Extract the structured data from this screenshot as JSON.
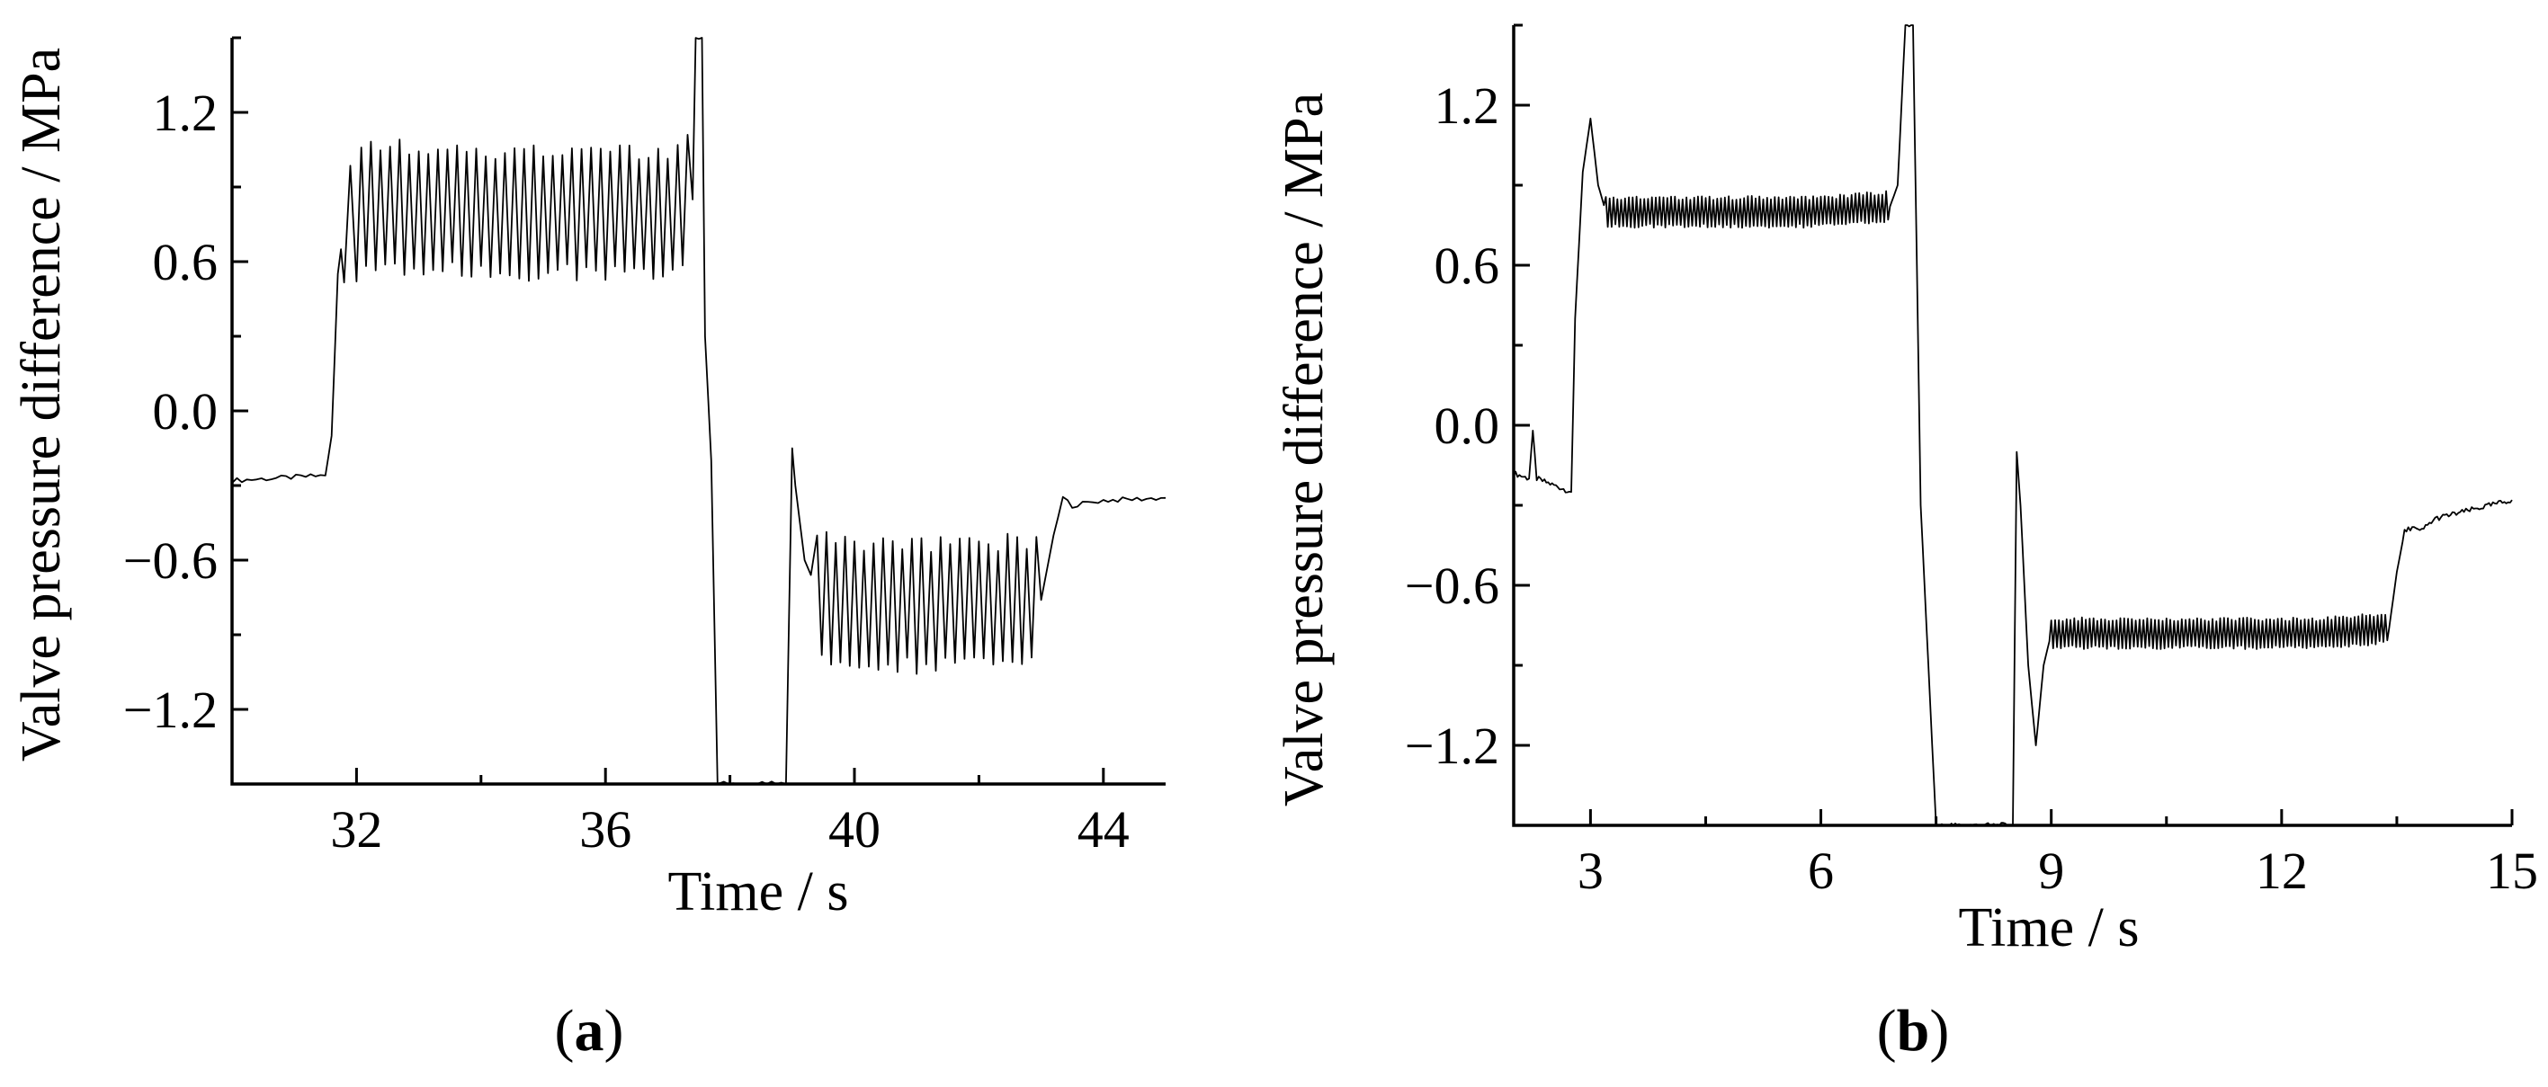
{
  "chart_data": [
    {
      "type": "line",
      "panel_label": "a",
      "xlabel": "Time / s",
      "ylabel": "Valve pressure difference / MPa",
      "xlim": [
        30.0,
        45.0
      ],
      "ylim": [
        -1.5,
        1.5
      ],
      "xticks": [
        32,
        36,
        40,
        44
      ],
      "xtick_labels": [
        "32",
        "36",
        "40",
        "44"
      ],
      "yticks": [
        -1.2,
        -0.6,
        0.0,
        0.6,
        1.2
      ],
      "ytick_labels": [
        "−1.2",
        "−0.6",
        "0.0",
        "0.6",
        "1.2"
      ],
      "grid": false,
      "series": [
        {
          "x": [
            30.0,
            31.5,
            31.6,
            31.7,
            31.8,
            32.0,
            33.0,
            34.0,
            35.0,
            36.0,
            37.0,
            37.4,
            37.45,
            37.55,
            37.6,
            37.7,
            37.8,
            37.9,
            38.9,
            39.0,
            39.05,
            39.2,
            39.4,
            40.0,
            41.0,
            42.0,
            43.0,
            43.2,
            43.35,
            43.5,
            44.0,
            45.0
          ],
          "y": [
            -0.28,
            -0.26,
            -0.1,
            0.55,
            0.75,
            0.8,
            0.82,
            0.8,
            0.8,
            0.8,
            0.8,
            0.85,
            1.5,
            1.5,
            0.3,
            -0.2,
            -1.5,
            -1.5,
            -1.5,
            -0.15,
            -0.3,
            -0.6,
            -0.72,
            -0.78,
            -0.78,
            -0.78,
            -0.76,
            -0.5,
            -0.35,
            -0.38,
            -0.36,
            -0.35
          ]
        }
      ]
    },
    {
      "type": "line",
      "panel_label": "b",
      "xlabel": "Time / s",
      "ylabel": "Valve pressure difference / MPa",
      "xlim": [
        2.0,
        15.0
      ],
      "ylim": [
        -1.5,
        1.5
      ],
      "xticks": [
        3,
        6,
        9,
        12,
        15
      ],
      "xtick_labels": [
        "3",
        "6",
        "9",
        "12",
        "15"
      ],
      "yticks": [
        -1.2,
        -0.6,
        0.0,
        0.6,
        1.2
      ],
      "ytick_labels": [
        "−1.2",
        "−0.6",
        "0.0",
        "0.6",
        "1.2"
      ],
      "grid": false,
      "series": [
        {
          "x": [
            2.0,
            2.2,
            2.25,
            2.3,
            2.75,
            2.8,
            2.9,
            3.0,
            3.1,
            3.2,
            3.5,
            4.0,
            5.0,
            6.0,
            6.9,
            7.0,
            7.1,
            7.2,
            7.3,
            7.5,
            8.5,
            8.55,
            8.6,
            8.7,
            8.8,
            8.9,
            9.0,
            9.5,
            10.5,
            11.5,
            12.5,
            13.4,
            13.5,
            13.6,
            13.7,
            13.8,
            14.0,
            15.0
          ],
          "y": [
            -0.18,
            -0.2,
            -0.02,
            -0.2,
            -0.25,
            0.4,
            0.95,
            1.15,
            0.9,
            0.8,
            0.8,
            0.8,
            0.8,
            0.8,
            0.82,
            0.9,
            1.5,
            1.5,
            -0.3,
            -1.5,
            -1.5,
            -0.1,
            -0.3,
            -0.9,
            -1.2,
            -0.9,
            -0.78,
            -0.78,
            -0.78,
            -0.78,
            -0.78,
            -0.76,
            -0.55,
            -0.4,
            -0.38,
            -0.4,
            -0.35,
            -0.28
          ]
        }
      ]
    }
  ]
}
